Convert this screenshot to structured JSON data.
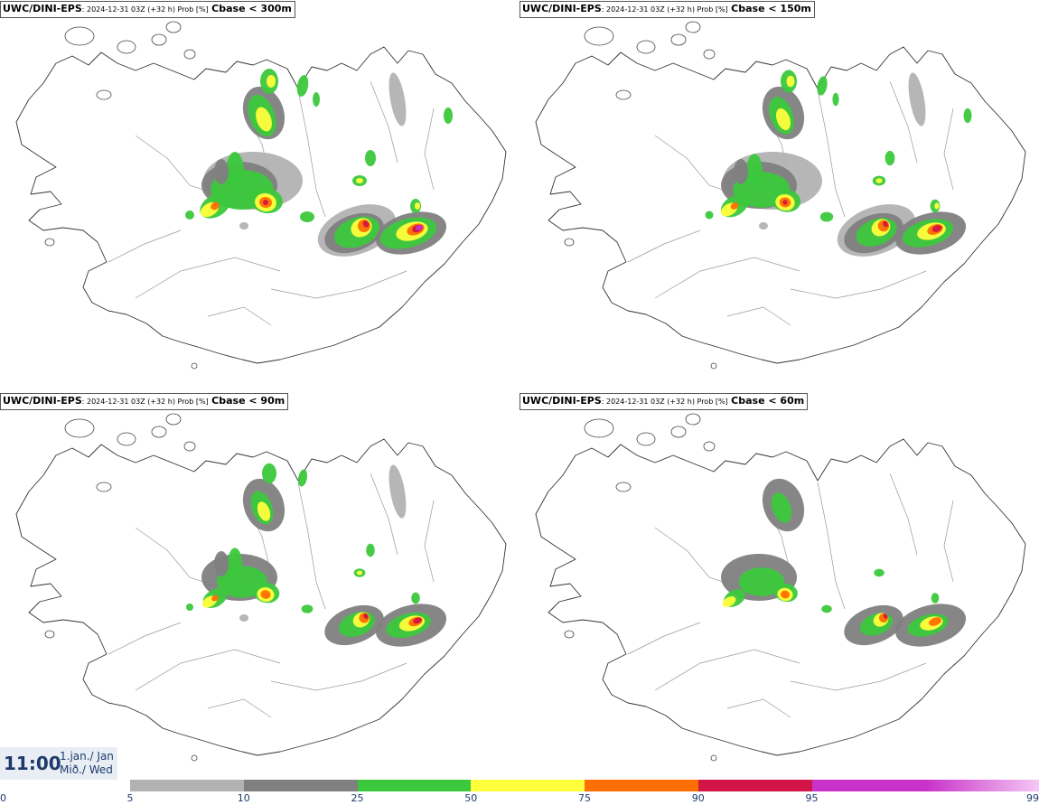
{
  "panels": [
    {
      "model": "UWC/DINI-EPS",
      "meta": ": 2024-12-31 03Z (+32 h) Prob [%]",
      "threshold": "Cbase < 300m",
      "level": 4
    },
    {
      "model": "UWC/DINI-EPS",
      "meta": ": 2024-12-31 03Z (+32 h) Prob [%]",
      "threshold": "Cbase < 150m",
      "level": 3
    },
    {
      "model": "UWC/DINI-EPS",
      "meta": ": 2024-12-31 03Z (+32 h) Prob [%]",
      "threshold": "Cbase < 90m",
      "level": 2
    },
    {
      "model": "UWC/DINI-EPS",
      "meta": ": 2024-12-31 03Z (+32 h) Prob [%]",
      "threshold": "Cbase < 60m",
      "level": 1
    }
  ],
  "time": {
    "clock": "11:00",
    "date_line1": "1.jan./ Jan",
    "date_line2": "Mið./ Wed"
  },
  "colorbar": {
    "colors": [
      "#b2b2b2",
      "#808080",
      "#3cc83c",
      "#ffff3c",
      "#ff6e00",
      "#d21446",
      "#c832c8",
      "#f5c8f5"
    ],
    "ticks": [
      "0",
      "5",
      "10",
      "25",
      "50",
      "75",
      "90",
      "95",
      "99"
    ]
  }
}
